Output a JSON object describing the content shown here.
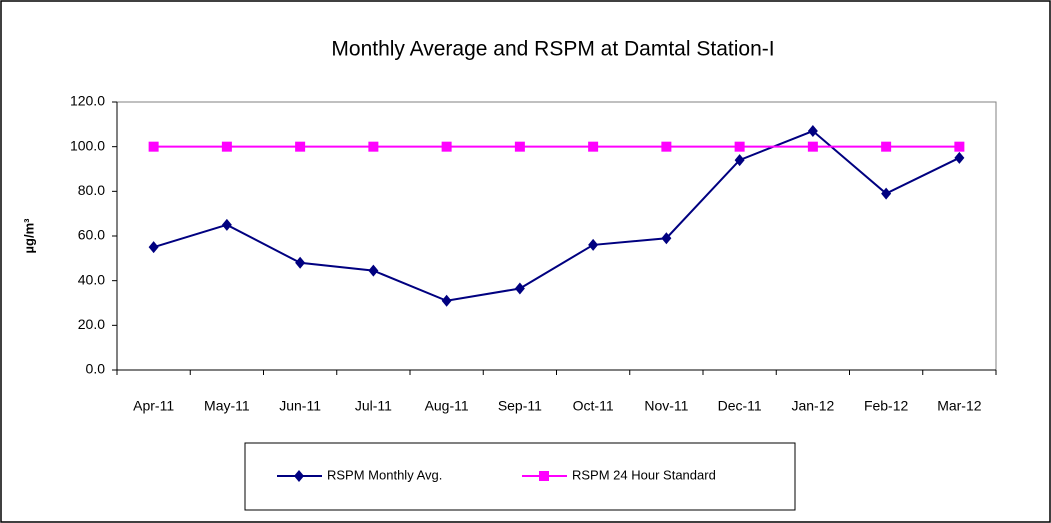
{
  "chart_data": {
    "type": "line",
    "title": "Monthly Average and RSPM at Damtal Station-I",
    "y_label": "µg/m³",
    "categories": [
      "Apr-11",
      "May-11",
      "Jun-11",
      "Jul-11",
      "Aug-11",
      "Sep-11",
      "Oct-11",
      "Nov-11",
      "Dec-11",
      "Jan-12",
      "Feb-12",
      "Mar-12"
    ],
    "series": [
      {
        "name": "RSPM Monthly Avg.",
        "color": "#000080",
        "marker": "diamond",
        "values": [
          55,
          65,
          48,
          44.5,
          31,
          36.5,
          56,
          59,
          94,
          107,
          79,
          95
        ]
      },
      {
        "name": "RSPM 24 Hour Standard",
        "color": "#ff00ff",
        "marker": "square",
        "values": [
          100,
          100,
          100,
          100,
          100,
          100,
          100,
          100,
          100,
          100,
          100,
          100
        ]
      }
    ],
    "ylim": [
      0,
      120
    ],
    "yticks": [
      {
        "value": 0,
        "label": "0.0"
      },
      {
        "value": 20,
        "label": "20.0"
      },
      {
        "value": 40,
        "label": "40.0"
      },
      {
        "value": 60,
        "label": "60.0"
      },
      {
        "value": 80,
        "label": "80.0"
      },
      {
        "value": 100,
        "label": "100.0"
      },
      {
        "value": 120,
        "label": "120.0"
      }
    ],
    "legend": "bottom"
  }
}
